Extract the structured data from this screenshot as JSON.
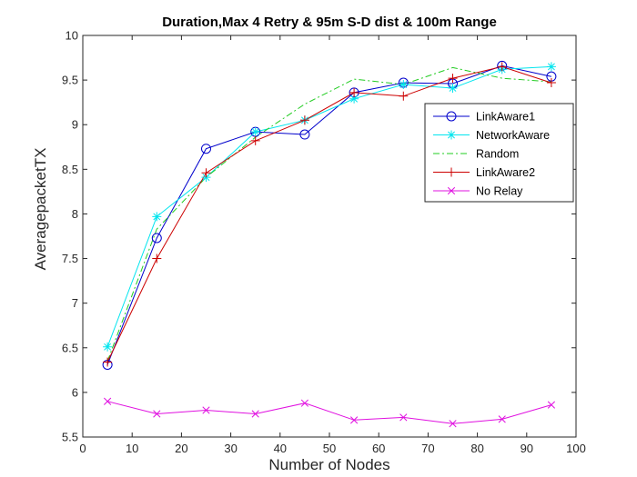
{
  "chart_data": {
    "type": "line",
    "title": "Duration,Max 4 Retry & 95m S-D dist & 100m Range",
    "xlabel": "Number of Nodes",
    "ylabel": "AveragepacketTX",
    "xlim": [
      0,
      100
    ],
    "ylim": [
      5.5,
      10
    ],
    "xticks": [
      "0",
      "10",
      "20",
      "30",
      "40",
      "50",
      "60",
      "70",
      "80",
      "90",
      "100"
    ],
    "yticks": [
      "5.5",
      "6",
      "6.5",
      "7",
      "7.5",
      "8",
      "8.5",
      "9",
      "9.5",
      "10"
    ],
    "grid": false,
    "legend_position": "right",
    "x": [
      5,
      15,
      25,
      35,
      45,
      55,
      65,
      75,
      85,
      95
    ],
    "series": [
      {
        "name": "LinkAware1",
        "color": "#0000cc",
        "marker": "circle",
        "dash": "solid",
        "values": [
          6.31,
          7.73,
          8.73,
          8.92,
          8.89,
          9.36,
          9.47,
          9.46,
          9.66,
          9.54
        ]
      },
      {
        "name": "NetworkAware",
        "color": "#00e5ee",
        "marker": "asterisk",
        "dash": "solid",
        "values": [
          6.51,
          7.97,
          8.41,
          8.92,
          9.05,
          9.29,
          9.45,
          9.41,
          9.62,
          9.65
        ]
      },
      {
        "name": "Random",
        "color": "#22cc22",
        "marker": "none",
        "dash": "dashdot",
        "values": [
          6.35,
          7.83,
          8.41,
          8.86,
          9.23,
          9.51,
          9.45,
          9.64,
          9.52,
          9.48
        ]
      },
      {
        "name": "LinkAware2",
        "color": "#cc0000",
        "marker": "plus",
        "dash": "solid",
        "values": [
          6.34,
          7.5,
          8.46,
          8.82,
          9.05,
          9.36,
          9.32,
          9.52,
          9.65,
          9.47
        ]
      },
      {
        "name": "No Relay",
        "color": "#e010e0",
        "marker": "x",
        "dash": "solid",
        "values": [
          5.9,
          5.76,
          5.8,
          5.76,
          5.88,
          5.69,
          5.72,
          5.65,
          5.7,
          5.86
        ]
      }
    ]
  }
}
